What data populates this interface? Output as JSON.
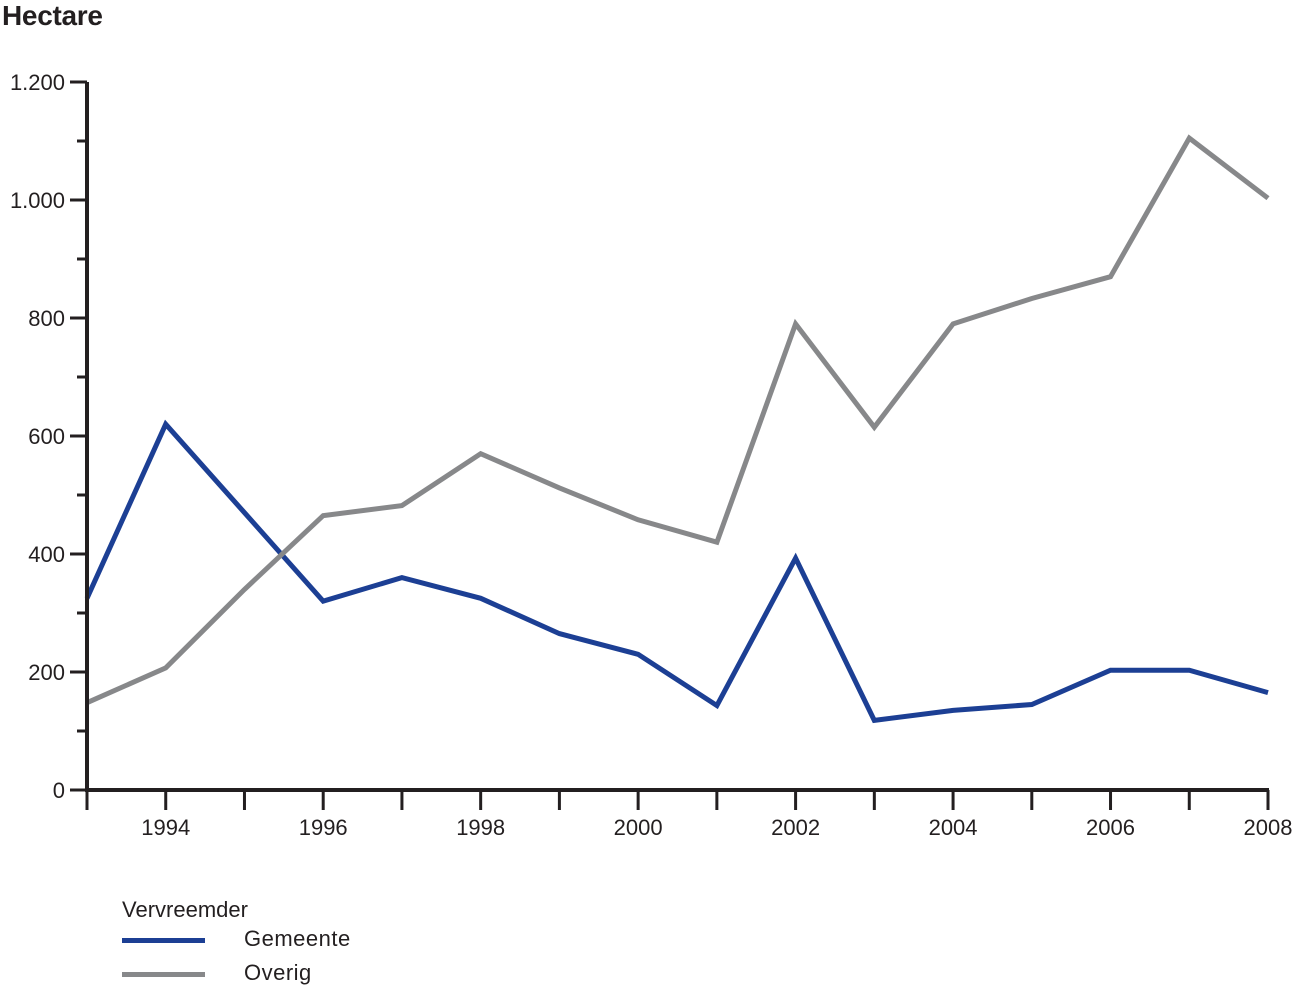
{
  "chart_data": {
    "type": "line",
    "title": "Hectare",
    "xlabel": "",
    "ylabel": "Hectare",
    "x": [
      1993,
      1994,
      1995,
      1996,
      1997,
      1998,
      1999,
      2000,
      2001,
      2002,
      2003,
      2004,
      2005,
      2006,
      2007,
      2008
    ],
    "xticks": [
      1994,
      1996,
      1998,
      2000,
      2002,
      2004,
      2006,
      2008
    ],
    "xtick_labels": [
      "1994",
      "1996",
      "1998",
      "2000",
      "2002",
      "2004",
      "2006",
      "2008"
    ],
    "yticks": [
      0,
      200,
      400,
      600,
      800,
      1000,
      1200
    ],
    "ytick_labels": [
      "0",
      "200",
      "400",
      "600",
      "800",
      "1.000",
      "1.200"
    ],
    "ylim": [
      0,
      1200
    ],
    "xlim": [
      1993,
      2008
    ],
    "grid": false,
    "legend_position": "bottom-left",
    "legend_title": "Vervreemder",
    "series": [
      {
        "name": "Gemeente",
        "color": "#1c3f94",
        "values": [
          325,
          620,
          470,
          320,
          360,
          325,
          265,
          230,
          143,
          393,
          118,
          135,
          145,
          203,
          203,
          165
        ]
      },
      {
        "name": "Overig",
        "color": "#87888a",
        "values": [
          148,
          207,
          340,
          465,
          482,
          570,
          512,
          458,
          420,
          790,
          615,
          790,
          833,
          870,
          1105,
          1003
        ]
      }
    ]
  },
  "header": {
    "title": "Hectare"
  },
  "legend": {
    "title": "Vervreemder",
    "items": [
      {
        "label": "Gemeente",
        "color": "#1c3f94"
      },
      {
        "label": "Overig",
        "color": "#87888a"
      }
    ]
  },
  "colors": {
    "axis": "#231f20",
    "background": "#ffffff"
  }
}
